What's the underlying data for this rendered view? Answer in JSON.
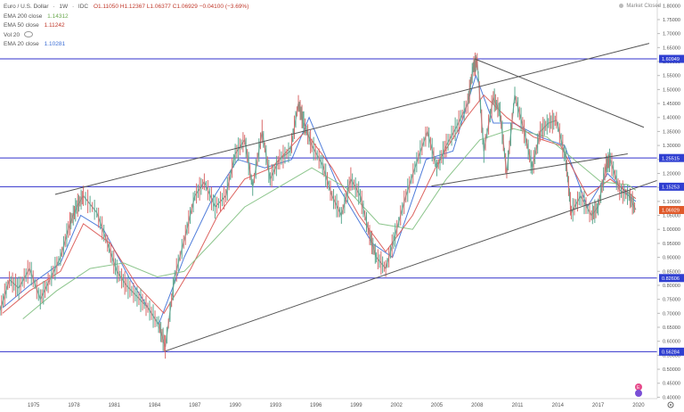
{
  "header": {
    "symbol": "Euro / U.S. Dollar",
    "interval": "1W",
    "exchange": "IDC",
    "ohlc_text": "O1.11050  H1.12367  L1.06377  C1.06929  −0.04100 (−3.69%)",
    "market_status": "Market Closed"
  },
  "legend": [
    {
      "label": "EMA 200 close",
      "value": "1.14312",
      "color": "#6aa84f"
    },
    {
      "label": "EMA 50 close",
      "value": "1.11242",
      "color": "#c0392b"
    },
    {
      "label": "Vol 20",
      "value": "",
      "color": "#999999"
    },
    {
      "label": "EMA 20 close",
      "value": "1.10281",
      "color": "#3d6fd6"
    }
  ],
  "chart_data": {
    "type": "line",
    "x_ticks": [
      "1975",
      "1978",
      "1981",
      "1984",
      "1987",
      "1990",
      "1993",
      "1996",
      "1999",
      "2002",
      "2005",
      "2008",
      "2011",
      "2014",
      "2017",
      "2020"
    ],
    "y_ticks": [
      "1.80000",
      "1.75000",
      "1.70000",
      "1.65000",
      "1.60000",
      "1.55000",
      "1.50000",
      "1.45000",
      "1.40000",
      "1.35000",
      "1.30000",
      "1.25000",
      "1.20000",
      "1.15000",
      "1.10000",
      "1.05000",
      "1.00000",
      "0.95000",
      "0.90000",
      "0.85000",
      "0.80000",
      "0.75000",
      "0.70000",
      "0.65000",
      "0.60000",
      "0.55000",
      "0.50000",
      "0.45000",
      "0.40000"
    ],
    "xlim": [
      1972.8,
      2021.7
    ],
    "ylim": [
      0.395,
      1.82
    ],
    "price_series": {
      "name": "EURUSD",
      "x": [
        1972.8,
        1973.5,
        1974.2,
        1975.0,
        1975.8,
        1976.5,
        1977.3,
        1978.0,
        1978.5,
        1979.0,
        1980.0,
        1980.8,
        1981.5,
        1982.2,
        1983.0,
        1983.8,
        1984.6,
        1985.1,
        1985.8,
        1986.6,
        1987.3,
        1988.0,
        1988.8,
        1989.6,
        1990.3,
        1991.0,
        1991.6,
        1992.3,
        1992.9,
        1993.6,
        1994.4,
        1995.0,
        1995.4,
        1996.0,
        1996.8,
        1997.5,
        1998.2,
        1998.9,
        1999.6,
        2000.3,
        2000.8,
        2001.5,
        2002.2,
        2003.0,
        2003.8,
        2004.6,
        2005.3,
        2006.0,
        2006.8,
        2007.6,
        2008.0,
        2008.3,
        2008.8,
        2009.5,
        2010.0,
        2010.5,
        2011.1,
        2011.8,
        2012.4,
        2013.0,
        2013.6,
        2014.2,
        2014.9,
        2015.3,
        2016.0,
        2016.8,
        2017.3,
        2017.9,
        2018.2,
        2018.9,
        2019.6,
        2020.1
      ],
      "y": [
        0.71,
        0.82,
        0.79,
        0.86,
        0.75,
        0.82,
        0.9,
        1.02,
        1.08,
        1.12,
        1.06,
        0.95,
        0.85,
        0.8,
        0.76,
        0.72,
        0.66,
        0.58,
        0.83,
        0.98,
        1.12,
        1.17,
        1.08,
        1.12,
        1.27,
        1.32,
        1.15,
        1.35,
        1.18,
        1.25,
        1.28,
        1.45,
        1.38,
        1.3,
        1.23,
        1.12,
        1.05,
        1.18,
        1.12,
        0.98,
        0.9,
        0.86,
        0.98,
        1.12,
        1.24,
        1.35,
        1.22,
        1.3,
        1.37,
        1.45,
        1.58,
        1.6,
        1.28,
        1.47,
        1.42,
        1.2,
        1.48,
        1.35,
        1.22,
        1.35,
        1.38,
        1.39,
        1.25,
        1.06,
        1.12,
        1.05,
        1.08,
        1.23,
        1.25,
        1.14,
        1.12,
        1.07
      ]
    },
    "ema_series": [
      {
        "name": "EMA 20 close",
        "x": [
          1973.0,
          1975.0,
          1977.3,
          1978.8,
          1980.5,
          1982.5,
          1984.6,
          1986.5,
          1988.5,
          1990.5,
          1992.5,
          1994.5,
          1995.8,
          1998.0,
          2000.5,
          2002.0,
          2004.5,
          2006.5,
          2008.2,
          2009.5,
          2011.0,
          2013.0,
          2014.8,
          2016.5,
          2018.0,
          2019.6,
          2020.1
        ],
        "y": [
          0.72,
          0.8,
          0.88,
          1.05,
          1.0,
          0.82,
          0.66,
          0.9,
          1.1,
          1.25,
          1.22,
          1.25,
          1.4,
          1.15,
          0.95,
          0.9,
          1.25,
          1.28,
          1.55,
          1.38,
          1.38,
          1.33,
          1.3,
          1.08,
          1.2,
          1.12,
          1.1
        ]
      },
      {
        "name": "EMA 50 close",
        "x": [
          1973.0,
          1975.0,
          1977.3,
          1979.0,
          1981.0,
          1983.0,
          1985.0,
          1987.0,
          1989.0,
          1991.0,
          1993.0,
          1995.5,
          1997.5,
          1999.5,
          2001.5,
          2003.5,
          2005.5,
          2007.5,
          2008.8,
          2010.5,
          2012.5,
          2014.5,
          2016.5,
          2018.2,
          2020.1
        ],
        "y": [
          0.7,
          0.78,
          0.85,
          1.02,
          0.95,
          0.8,
          0.7,
          0.86,
          1.05,
          1.18,
          1.22,
          1.35,
          1.22,
          1.05,
          0.92,
          1.05,
          1.25,
          1.4,
          1.48,
          1.4,
          1.33,
          1.3,
          1.12,
          1.18,
          1.11
        ]
      },
      {
        "name": "EMA 200 close",
        "x": [
          1974.5,
          1977.0,
          1979.5,
          1982.0,
          1984.5,
          1986.5,
          1988.5,
          1991.0,
          1993.5,
          1996.0,
          1998.5,
          2001.0,
          2003.5,
          2006.0,
          2008.5,
          2011.0,
          2013.5,
          2015.5,
          2017.5,
          2019.5,
          2020.1
        ],
        "y": [
          0.68,
          0.78,
          0.86,
          0.88,
          0.83,
          0.85,
          0.95,
          1.08,
          1.15,
          1.22,
          1.15,
          1.02,
          1.0,
          1.18,
          1.32,
          1.36,
          1.33,
          1.25,
          1.17,
          1.16,
          1.14
        ]
      }
    ],
    "horizontal_levels": [
      {
        "label": "1.60949",
        "value": 1.60949
      },
      {
        "label": "1.25515",
        "value": 1.25515
      },
      {
        "label": "1.15253",
        "value": 1.15253
      },
      {
        "label": "0.82606",
        "value": 0.82606
      },
      {
        "label": "0.56284",
        "value": 0.56284
      }
    ],
    "trend_lines": [
      {
        "x": [
          1976.9,
          2021.1
        ],
        "y": [
          1.125,
          1.665
        ]
      },
      {
        "x": [
          1985.1,
          2021.7
        ],
        "y": [
          0.565,
          1.175
        ]
      },
      {
        "x": [
          2008.1,
          2020.7
        ],
        "y": [
          1.61,
          1.365
        ]
      },
      {
        "x": [
          2004.9,
          2019.5
        ],
        "y": [
          1.155,
          1.27
        ]
      }
    ],
    "last_price": {
      "label": "1.06929",
      "value": 1.06929
    }
  },
  "colors": {
    "level_line": "#3333cc",
    "level_label_bg": "#2f3fd1",
    "price_label_bg": "#e05a2b",
    "trend_line": "#555555",
    "price_up": "#5aa88f",
    "price_down": "#d96a6a"
  }
}
